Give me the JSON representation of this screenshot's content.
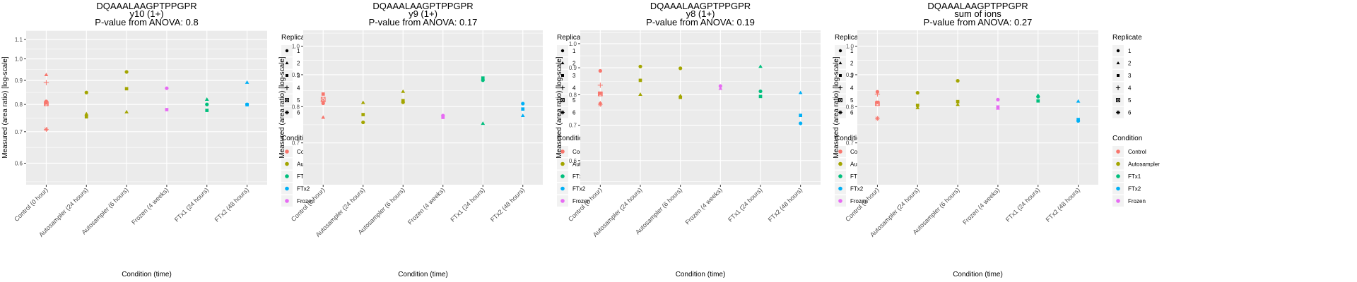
{
  "chart_data": [
    {
      "type": "scatter",
      "title": "DQAAALAAGPTPPGPR",
      "subtitle": "y10 (1+)",
      "pvalue_label": "P-value from ANOVA: 0.8",
      "xlabel": "Condition (time)",
      "ylabel": "Measured (area ratio) [log-scale]",
      "yscale": "log",
      "ylim": [
        0.54,
        1.15
      ],
      "yticks": [
        0.6,
        0.7,
        0.8,
        0.9,
        1.0,
        1.1
      ],
      "ytick_labels": [
        "0.6",
        "0.7",
        "0.8",
        "0.9",
        "1.0",
        "1.1"
      ],
      "grid": true,
      "categories": [
        "Control (0 hour)",
        "Autosampler (24 hours)",
        "Autosampler (6 hours)",
        "Frozen (4 weeks)",
        "FTx1 (24 hours)",
        "FTx2 (48 hours)"
      ],
      "points": [
        {
          "x": 0,
          "y": 0.925,
          "replicate": 2,
          "condition": "Control"
        },
        {
          "x": 0,
          "y": 0.89,
          "replicate": 4,
          "condition": "Control"
        },
        {
          "x": 0,
          "y": 0.812,
          "replicate": 1,
          "condition": "Control"
        },
        {
          "x": 0,
          "y": 0.806,
          "replicate": 3,
          "condition": "Control"
        },
        {
          "x": 0,
          "y": 0.803,
          "replicate": 5,
          "condition": "Control"
        },
        {
          "x": 0,
          "y": 0.708,
          "replicate": 6,
          "condition": "Control"
        },
        {
          "x": 1,
          "y": 0.848,
          "replicate": 1,
          "condition": "Autosampler"
        },
        {
          "x": 1,
          "y": 0.764,
          "replicate": 2,
          "condition": "Autosampler"
        },
        {
          "x": 1,
          "y": 0.753,
          "replicate": 3,
          "condition": "Autosampler"
        },
        {
          "x": 2,
          "y": 0.938,
          "replicate": 1,
          "condition": "Autosampler"
        },
        {
          "x": 2,
          "y": 0.864,
          "replicate": 3,
          "condition": "Autosampler"
        },
        {
          "x": 2,
          "y": 0.771,
          "replicate": 2,
          "condition": "Autosampler"
        },
        {
          "x": 3,
          "y": 0.866,
          "replicate": 1,
          "condition": "Frozen"
        },
        {
          "x": 3,
          "y": 0.78,
          "replicate": 3,
          "condition": "Frozen"
        },
        {
          "x": 4,
          "y": 0.82,
          "replicate": 2,
          "condition": "FTx1"
        },
        {
          "x": 4,
          "y": 0.8,
          "replicate": 1,
          "condition": "FTx1"
        },
        {
          "x": 4,
          "y": 0.777,
          "replicate": 3,
          "condition": "FTx1"
        },
        {
          "x": 5,
          "y": 0.891,
          "replicate": 2,
          "condition": "FTx2"
        },
        {
          "x": 5,
          "y": 0.8,
          "replicate": 1,
          "condition": "FTx2"
        },
        {
          "x": 5,
          "y": 0.799,
          "replicate": 3,
          "condition": "FTx2"
        }
      ]
    },
    {
      "type": "scatter",
      "title": "DQAAALAAGPTPPGPR",
      "subtitle": "y9 (1+)",
      "pvalue_label": "P-value from ANOVA: 0.17",
      "xlabel": "Condition (time)",
      "ylabel": "Measured (area ratio) [log-scale]",
      "yscale": "log",
      "ylim": [
        0.6,
        1.06
      ],
      "yticks": [
        0.7,
        0.8,
        0.9,
        1.0
      ],
      "ytick_labels": [
        "0.7",
        "0.8",
        "0.9",
        "1.0"
      ],
      "grid": true,
      "categories": [
        "Control (0 hour)",
        "Autosampler (24 hours)",
        "Autosampler (6 hours)",
        "Frozen (4 weeks)",
        "FTx1 (24 hours)",
        "FTx2 (48 hours)"
      ],
      "points": [
        {
          "x": 0,
          "y": 0.838,
          "replicate": 3,
          "condition": "Control"
        },
        {
          "x": 0,
          "y": 0.822,
          "replicate": 5,
          "condition": "Control"
        },
        {
          "x": 0,
          "y": 0.815,
          "replicate": 4,
          "condition": "Control"
        },
        {
          "x": 0,
          "y": 0.81,
          "replicate": 1,
          "condition": "Control"
        },
        {
          "x": 0,
          "y": 0.769,
          "replicate": 2,
          "condition": "Control"
        },
        {
          "x": 1,
          "y": 0.812,
          "replicate": 2,
          "condition": "Autosampler"
        },
        {
          "x": 1,
          "y": 0.777,
          "replicate": 3,
          "condition": "Autosampler"
        },
        {
          "x": 1,
          "y": 0.755,
          "replicate": 1,
          "condition": "Autosampler"
        },
        {
          "x": 2,
          "y": 0.846,
          "replicate": 2,
          "condition": "Autosampler"
        },
        {
          "x": 2,
          "y": 0.818,
          "replicate": 3,
          "condition": "Autosampler"
        },
        {
          "x": 2,
          "y": 0.813,
          "replicate": 1,
          "condition": "Autosampler"
        },
        {
          "x": 3,
          "y": 0.774,
          "replicate": 1,
          "condition": "Frozen"
        },
        {
          "x": 3,
          "y": 0.769,
          "replicate": 3,
          "condition": "Frozen"
        },
        {
          "x": 4,
          "y": 0.889,
          "replicate": 3,
          "condition": "FTx1"
        },
        {
          "x": 4,
          "y": 0.882,
          "replicate": 1,
          "condition": "FTx1"
        },
        {
          "x": 4,
          "y": 0.752,
          "replicate": 2,
          "condition": "FTx1"
        },
        {
          "x": 5,
          "y": 0.809,
          "replicate": 1,
          "condition": "FTx2"
        },
        {
          "x": 5,
          "y": 0.793,
          "replicate": 3,
          "condition": "FTx2"
        },
        {
          "x": 5,
          "y": 0.774,
          "replicate": 2,
          "condition": "FTx2"
        }
      ]
    },
    {
      "type": "scatter",
      "title": "DQAAALAAGPTPPGPR",
      "subtitle": "y8 (1+)",
      "pvalue_label": "P-value from ANOVA: 0.19",
      "xlabel": "Condition (time)",
      "ylabel": "Measured (area ratio) [log-scale]",
      "yscale": "log",
      "ylim": [
        0.54,
        1.06
      ],
      "yticks": [
        0.6,
        0.7,
        0.8,
        0.9,
        1.0
      ],
      "ytick_labels": [
        "0.6",
        "0.7",
        "0.8",
        "0.9",
        "1.0"
      ],
      "grid": true,
      "categories": [
        "Control (0 hour)",
        "Autosampler (24 hours)",
        "Autosampler (6 hours)",
        "Frozen (4 weeks)",
        "FTx1 (24 hours)",
        "FTx2 (48 hours)"
      ],
      "points": [
        {
          "x": 0,
          "y": 0.888,
          "replicate": 1,
          "condition": "Control"
        },
        {
          "x": 0,
          "y": 0.834,
          "replicate": 4,
          "condition": "Control"
        },
        {
          "x": 0,
          "y": 0.805,
          "replicate": 3,
          "condition": "Control"
        },
        {
          "x": 0,
          "y": 0.803,
          "replicate": 5,
          "condition": "Control"
        },
        {
          "x": 0,
          "y": 0.772,
          "replicate": 2,
          "condition": "Control"
        },
        {
          "x": 0,
          "y": 0.767,
          "replicate": 6,
          "condition": "Control"
        },
        {
          "x": 1,
          "y": 0.905,
          "replicate": 1,
          "condition": "Autosampler"
        },
        {
          "x": 1,
          "y": 0.852,
          "replicate": 3,
          "condition": "Autosampler"
        },
        {
          "x": 1,
          "y": 0.801,
          "replicate": 2,
          "condition": "Autosampler"
        },
        {
          "x": 2,
          "y": 0.898,
          "replicate": 1,
          "condition": "Autosampler"
        },
        {
          "x": 2,
          "y": 0.796,
          "replicate": 2,
          "condition": "Autosampler"
        },
        {
          "x": 2,
          "y": 0.791,
          "replicate": 3,
          "condition": "Autosampler"
        },
        {
          "x": 3,
          "y": 0.831,
          "replicate": 1,
          "condition": "Frozen"
        },
        {
          "x": 3,
          "y": 0.822,
          "replicate": 2,
          "condition": "Frozen"
        },
        {
          "x": 4,
          "y": 0.905,
          "replicate": 2,
          "condition": "FTx1"
        },
        {
          "x": 4,
          "y": 0.812,
          "replicate": 1,
          "condition": "FTx1"
        },
        {
          "x": 4,
          "y": 0.794,
          "replicate": 3,
          "condition": "FTx1"
        },
        {
          "x": 5,
          "y": 0.807,
          "replicate": 2,
          "condition": "FTx2"
        },
        {
          "x": 5,
          "y": 0.731,
          "replicate": 3,
          "condition": "FTx2"
        },
        {
          "x": 5,
          "y": 0.706,
          "replicate": 1,
          "condition": "FTx2"
        }
      ]
    },
    {
      "type": "scatter",
      "title": "DQAAALAAGPTPPGPR",
      "subtitle": "sum of ions",
      "pvalue_label": "P-value from ANOVA: 0.27",
      "xlabel": "Condition (time)",
      "ylabel": "Measured (area ratio) [log-scale]",
      "yscale": "log",
      "ylim": [
        0.6,
        1.06
      ],
      "yticks": [
        0.7,
        0.8,
        0.9,
        1.0
      ],
      "ytick_labels": [
        "0.7",
        "0.8",
        "0.9",
        "1.0"
      ],
      "grid": true,
      "categories": [
        "Control (0 hour)",
        "Autosampler (24 hours)",
        "Autosampler (6 hours)",
        "Frozen (4 weeks)",
        "FTx1 (24 hours)",
        "FTx2 (48 hours)"
      ],
      "points": [
        {
          "x": 0,
          "y": 0.845,
          "replicate": 1,
          "condition": "Control"
        },
        {
          "x": 0,
          "y": 0.838,
          "replicate": 4,
          "condition": "Control"
        },
        {
          "x": 0,
          "y": 0.813,
          "replicate": 3,
          "condition": "Control"
        },
        {
          "x": 0,
          "y": 0.809,
          "replicate": 5,
          "condition": "Control"
        },
        {
          "x": 0,
          "y": 0.766,
          "replicate": 6,
          "condition": "Control"
        },
        {
          "x": 1,
          "y": 0.842,
          "replicate": 1,
          "condition": "Autosampler"
        },
        {
          "x": 1,
          "y": 0.804,
          "replicate": 3,
          "condition": "Autosampler"
        },
        {
          "x": 1,
          "y": 0.797,
          "replicate": 2,
          "condition": "Autosampler"
        },
        {
          "x": 2,
          "y": 0.88,
          "replicate": 1,
          "condition": "Autosampler"
        },
        {
          "x": 2,
          "y": 0.815,
          "replicate": 3,
          "condition": "Autosampler"
        },
        {
          "x": 2,
          "y": 0.806,
          "replicate": 2,
          "condition": "Autosampler"
        },
        {
          "x": 3,
          "y": 0.821,
          "replicate": 1,
          "condition": "Frozen"
        },
        {
          "x": 3,
          "y": 0.799,
          "replicate": 3,
          "condition": "Frozen"
        },
        {
          "x": 3,
          "y": 0.795,
          "replicate": 2,
          "condition": "Frozen"
        },
        {
          "x": 4,
          "y": 0.834,
          "replicate": 2,
          "condition": "FTx1"
        },
        {
          "x": 4,
          "y": 0.83,
          "replicate": 1,
          "condition": "FTx1"
        },
        {
          "x": 4,
          "y": 0.817,
          "replicate": 3,
          "condition": "FTx1"
        },
        {
          "x": 5,
          "y": 0.816,
          "replicate": 2,
          "condition": "FTx2"
        },
        {
          "x": 5,
          "y": 0.763,
          "replicate": 3,
          "condition": "FTx2"
        },
        {
          "x": 5,
          "y": 0.759,
          "replicate": 1,
          "condition": "FTx2"
        }
      ]
    }
  ],
  "legend": {
    "replicate_title": "Replicate",
    "replicates": [
      {
        "label": "1",
        "shape": "circle"
      },
      {
        "label": "2",
        "shape": "triangle"
      },
      {
        "label": "3",
        "shape": "square"
      },
      {
        "label": "4",
        "shape": "plus"
      },
      {
        "label": "5",
        "shape": "boxed-x"
      },
      {
        "label": "6",
        "shape": "asterisk"
      }
    ],
    "condition_title": "Condition",
    "conditions": [
      {
        "label": "Control",
        "color": "#F8766D"
      },
      {
        "label": "Autosampler",
        "color": "#A3A500"
      },
      {
        "label": "FTx1",
        "color": "#00BF7D"
      },
      {
        "label": "FTx2",
        "color": "#00B0F6"
      },
      {
        "label": "Frozen",
        "color": "#E76BF3"
      }
    ]
  }
}
